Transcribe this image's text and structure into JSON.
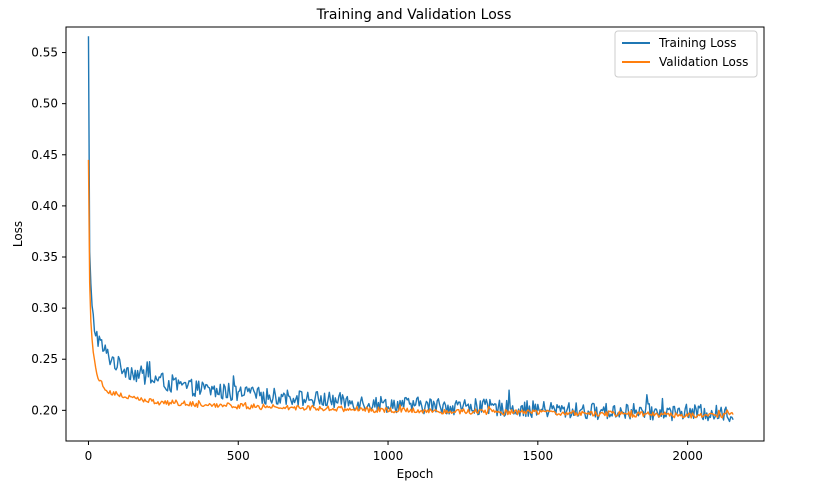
{
  "chart_data": {
    "type": "line",
    "title": "Training and Validation Loss",
    "xlabel": "Epoch",
    "ylabel": "Loss",
    "xlim": [
      -75,
      2255
    ],
    "ylim": [
      0.17,
      0.575
    ],
    "xticks": [
      0,
      500,
      1000,
      1500,
      2000
    ],
    "xtick_labels": [
      "0",
      "500",
      "1000",
      "1500",
      "2000"
    ],
    "yticks": [
      0.2,
      0.25,
      0.3,
      0.35,
      0.4,
      0.45,
      0.5,
      0.55
    ],
    "ytick_labels": [
      "0.20",
      "0.25",
      "0.30",
      "0.35",
      "0.40",
      "0.45",
      "0.50",
      "0.55"
    ],
    "grid": false,
    "legend_position": "top-right",
    "x_max_epoch": 2155,
    "series": [
      {
        "name": "Training Loss",
        "color": "#1f77b4",
        "x": [
          0,
          1,
          2,
          3,
          4,
          6,
          8,
          10,
          12,
          15,
          20,
          25,
          30,
          40,
          50,
          60,
          80,
          100,
          130,
          160,
          200,
          250,
          300,
          350,
          400,
          450,
          500,
          600,
          700,
          800,
          900,
          1000,
          1100,
          1200,
          1300,
          1400,
          1500,
          1600,
          1700,
          1800,
          1900,
          2000,
          2100,
          2155
        ],
        "y": [
          0.566,
          0.47,
          0.41,
          0.375,
          0.355,
          0.335,
          0.32,
          0.308,
          0.298,
          0.29,
          0.282,
          0.276,
          0.272,
          0.265,
          0.26,
          0.255,
          0.25,
          0.244,
          0.24,
          0.236,
          0.232,
          0.228,
          0.224,
          0.222,
          0.22,
          0.218,
          0.216,
          0.214,
          0.212,
          0.21,
          0.208,
          0.206,
          0.205,
          0.204,
          0.203,
          0.202,
          0.201,
          0.2,
          0.199,
          0.199,
          0.198,
          0.198,
          0.197,
          0.196
        ],
        "noise": 0.009
      },
      {
        "name": "Validation Loss",
        "color": "#ff7f0e",
        "x": [
          0,
          1,
          2,
          3,
          4,
          6,
          8,
          10,
          12,
          15,
          20,
          25,
          30,
          40,
          50,
          60,
          80,
          100,
          130,
          160,
          200,
          250,
          300,
          350,
          400,
          450,
          500,
          600,
          700,
          800,
          900,
          1000,
          1100,
          1200,
          1300,
          1400,
          1500,
          1600,
          1700,
          1800,
          1900,
          2000,
          2100,
          2155
        ],
        "y": [
          0.445,
          0.4,
          0.37,
          0.345,
          0.325,
          0.305,
          0.29,
          0.278,
          0.268,
          0.258,
          0.248,
          0.24,
          0.235,
          0.228,
          0.224,
          0.221,
          0.217,
          0.215,
          0.213,
          0.211,
          0.209,
          0.208,
          0.207,
          0.206,
          0.205,
          0.205,
          0.204,
          0.203,
          0.203,
          0.202,
          0.201,
          0.2,
          0.2,
          0.199,
          0.199,
          0.198,
          0.198,
          0.197,
          0.197,
          0.196,
          0.196,
          0.195,
          0.195,
          0.196
        ],
        "noise": 0.003
      }
    ]
  }
}
